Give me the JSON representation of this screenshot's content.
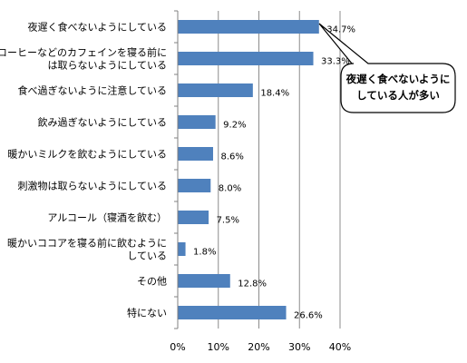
{
  "chart_data": {
    "type": "bar",
    "orientation": "horizontal",
    "title": "",
    "xlabel": "",
    "ylabel": "",
    "xlim": [
      0,
      40
    ],
    "ticks": [
      "0%",
      "10%",
      "20%",
      "30%",
      "40%"
    ],
    "grid": "vertical major gridlines",
    "categories": [
      [
        "夜遅く食べないようにしている"
      ],
      [
        "コーヒーなどのカフェインを寝る前に",
        "は取らないようにしている"
      ],
      [
        "食べ過ぎないように注意している"
      ],
      [
        "飲み過ぎないようにしている"
      ],
      [
        "暖かいミルクを飲むようにしている"
      ],
      [
        "刺激物は取らないようにしている"
      ],
      [
        "アルコール（寝酒を飲む）"
      ],
      [
        "暖かいココアを寝る前に飲むように",
        "している"
      ],
      [
        "その他"
      ],
      [
        "特にない"
      ]
    ],
    "values": [
      34.7,
      33.3,
      18.4,
      9.2,
      8.6,
      8.0,
      7.5,
      1.8,
      12.8,
      26.6
    ],
    "value_labels": [
      "34.7%",
      "33.3%",
      "18.4%",
      "9.2%",
      "8.6%",
      "8.0%",
      "7.5%",
      "1.8%",
      "12.8%",
      "26.6%"
    ],
    "bar_color": "#4f81bd",
    "annotation": {
      "lines": [
        "夜遅く食べないように",
        "している人が多い"
      ],
      "shape": "speech-bubble",
      "points_to": "夜遅く食べないようにしている"
    }
  }
}
